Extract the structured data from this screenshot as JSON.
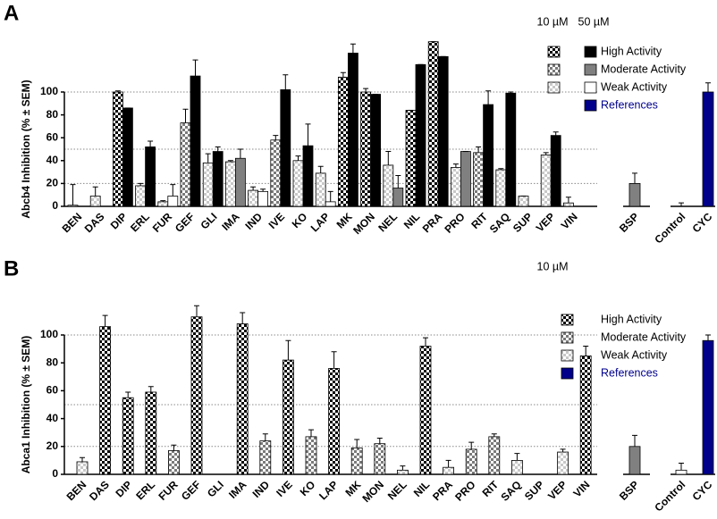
{
  "chart_data": [
    {
      "type": "bar",
      "panel": "A",
      "y_label": "Abcb4 Inhibition (% ± SEM)",
      "categories": [
        "BEN",
        "DAS",
        "DIP",
        "ERL",
        "FUR",
        "GEF",
        "GLI",
        "IMA",
        "IND",
        "IVE",
        "KO",
        "LAP",
        "MK",
        "MON",
        "NEL",
        "NIL",
        "PRA",
        "PRO",
        "RIT",
        "SAQ",
        "SUP",
        "VEP",
        "VIN"
      ],
      "levels": [
        {
          "name": "High Activity",
          "color": "#000000",
          "pattern_color": "#000000"
        },
        {
          "name": "Moderate Activity",
          "color": "#808080",
          "pattern_color": "#7a7a7a"
        },
        {
          "name": "Weak Activity",
          "color": "#ffffff",
          "pattern_color": "#c8c8c8"
        }
      ],
      "series": [
        {
          "name": "10 µM",
          "fill": "checker",
          "values": [
            1,
            9,
            100,
            18,
            4,
            73,
            38,
            39,
            14,
            58,
            40,
            29,
            113,
            100,
            36,
            84,
            144,
            34,
            47,
            32,
            9,
            45,
            3
          ],
          "errors": [
            18,
            8,
            1,
            2,
            1,
            12,
            8,
            1,
            3,
            4,
            4,
            6,
            4,
            3,
            12,
            0,
            0,
            3,
            5,
            1,
            0,
            2,
            5
          ],
          "activity": [
            2,
            2,
            0,
            2,
            2,
            1,
            2,
            2,
            2,
            1,
            2,
            2,
            0,
            0,
            2,
            0,
            0,
            2,
            1,
            2,
            2,
            2,
            2
          ]
        },
        {
          "name": "50 µM",
          "fill": "solid",
          "values": [
            null,
            null,
            86,
            52,
            9,
            114,
            48,
            42,
            13,
            102,
            53,
            4,
            134,
            98,
            16,
            124,
            131,
            48,
            89,
            99,
            null,
            62,
            null
          ],
          "errors": [
            null,
            null,
            0,
            5,
            10,
            14,
            4,
            8,
            2,
            13,
            19,
            9,
            8,
            0,
            11,
            0,
            0,
            0,
            12,
            1,
            null,
            3,
            null
          ],
          "activity": [
            null,
            null,
            0,
            0,
            2,
            0,
            0,
            1,
            2,
            0,
            0,
            2,
            0,
            0,
            1,
            0,
            0,
            1,
            0,
            0,
            null,
            0,
            null
          ]
        }
      ],
      "references": {
        "name": "References",
        "color": "#00008b",
        "categories": [
          "BSP",
          "Control",
          "CYC"
        ],
        "values": [
          20,
          0,
          100
        ],
        "errors": [
          9,
          3,
          8
        ],
        "colors": [
          "#808080",
          "#ffffff",
          "#00008b"
        ]
      },
      "ylim": [
        0,
        145
      ],
      "yticks": [
        0,
        20,
        40,
        60,
        80,
        100
      ],
      "ref_lines": [
        20,
        50,
        100
      ]
    },
    {
      "type": "bar",
      "panel": "B",
      "y_label": "Abca1 Inhibition (% ± SEM)",
      "categories": [
        "BEN",
        "DAS",
        "DIP",
        "ERL",
        "FUR",
        "GEF",
        "GLI",
        "IMA",
        "IND",
        "IVE",
        "KO",
        "LAP",
        "MK",
        "MON",
        "NEL",
        "NIL",
        "PRA",
        "PRO",
        "RIT",
        "SAQ",
        "SUP",
        "VEP",
        "VIN"
      ],
      "levels": [
        {
          "name": "High Activity",
          "color": "#000000",
          "pattern_color": "#000000"
        },
        {
          "name": "Moderate Activity",
          "color": "#808080",
          "pattern_color": "#7a7a7a"
        },
        {
          "name": "Weak Activity",
          "color": "#ffffff",
          "pattern_color": "#c8c8c8"
        }
      ],
      "series": [
        {
          "name": "10 µM",
          "fill": "checker",
          "values": [
            9,
            106,
            55,
            59,
            17,
            113,
            null,
            108,
            24,
            82,
            27,
            76,
            19,
            22,
            3,
            92,
            5,
            18,
            27,
            10,
            null,
            16,
            85
          ],
          "errors": [
            3,
            8,
            4,
            4,
            4,
            8,
            null,
            8,
            5,
            14,
            5,
            12,
            6,
            4,
            3,
            6,
            5,
            5,
            2,
            5,
            null,
            2,
            7
          ],
          "activity": [
            2,
            0,
            0,
            0,
            1,
            0,
            null,
            0,
            1,
            0,
            1,
            0,
            1,
            1,
            2,
            0,
            2,
            1,
            1,
            2,
            null,
            2,
            0
          ]
        }
      ],
      "references": {
        "name": "References",
        "color": "#00008b",
        "categories": [
          "BSP",
          "Control",
          "CYC"
        ],
        "values": [
          20,
          3,
          96
        ],
        "errors": [
          8,
          5,
          4
        ],
        "colors": [
          "#808080",
          "#ffffff",
          "#00008b"
        ]
      },
      "ylim": [
        0,
        125
      ],
      "yticks": [
        0,
        20,
        40,
        60,
        80,
        100
      ],
      "ref_lines": [
        20,
        50,
        100
      ]
    }
  ]
}
